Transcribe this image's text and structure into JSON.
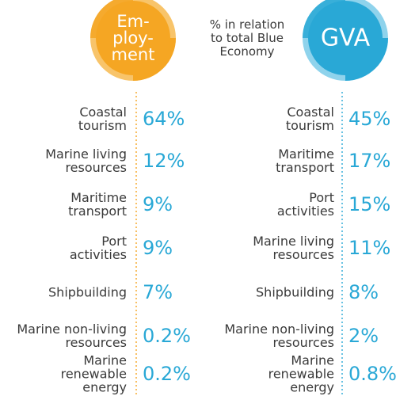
{
  "note_lines": [
    "% in relation",
    "to total Blue",
    "Economy"
  ],
  "colors": {
    "employment": "#f5a623",
    "employment_light": "#f8c46a",
    "gva": "#29a8d6",
    "gva_light": "#8fd3ec",
    "label": "#3a3a3a"
  },
  "chart_data": [
    {
      "type": "table",
      "title_lines": [
        "Em-",
        "ploy-",
        "ment"
      ],
      "unit": "%",
      "rows": [
        {
          "label_lines": [
            "Coastal",
            "tourism"
          ],
          "value": 64,
          "display": "64%"
        },
        {
          "label_lines": [
            "Marine living",
            "resources"
          ],
          "value": 12,
          "display": "12%"
        },
        {
          "label_lines": [
            "Maritime",
            "transport"
          ],
          "value": 9,
          "display": "9%"
        },
        {
          "label_lines": [
            "Port",
            "activities"
          ],
          "value": 9,
          "display": "9%"
        },
        {
          "label_lines": [
            "Shipbuilding"
          ],
          "value": 7,
          "display": "7%"
        },
        {
          "label_lines": [
            "Marine non-living",
            "resources"
          ],
          "value": 0.2,
          "display": "0.2%"
        },
        {
          "label_lines": [
            "Marine",
            "renewable",
            "energy"
          ],
          "value": 0.2,
          "display": "0.2%"
        }
      ]
    },
    {
      "type": "table",
      "title_lines": [
        "GVA"
      ],
      "unit": "%",
      "rows": [
        {
          "label_lines": [
            "Coastal",
            "tourism"
          ],
          "value": 45,
          "display": "45%"
        },
        {
          "label_lines": [
            "Maritime",
            "transport"
          ],
          "value": 17,
          "display": "17%"
        },
        {
          "label_lines": [
            "Port",
            "activities"
          ],
          "value": 15,
          "display": "15%"
        },
        {
          "label_lines": [
            "Marine living",
            "resources"
          ],
          "value": 11,
          "display": "11%"
        },
        {
          "label_lines": [
            "Shipbuilding"
          ],
          "value": 8,
          "display": "8%"
        },
        {
          "label_lines": [
            "Marine non-living",
            "resources"
          ],
          "value": 2,
          "display": "2%"
        },
        {
          "label_lines": [
            "Marine",
            "renewable",
            "energy"
          ],
          "value": 0.8,
          "display": "0.8%"
        }
      ]
    }
  ]
}
